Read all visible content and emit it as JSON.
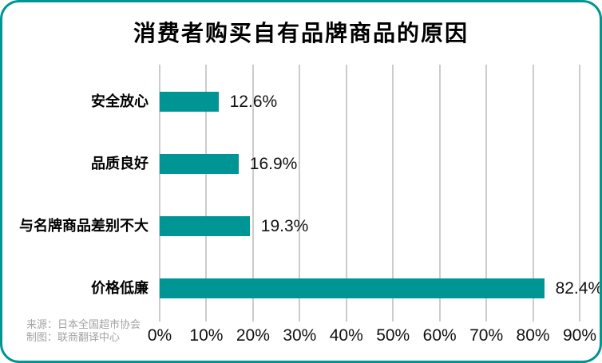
{
  "chart_data": {
    "type": "bar",
    "orientation": "horizontal",
    "title": "消费者购买自有品牌商品的原因",
    "categories": [
      "安全放心",
      "品质良好",
      "与名牌商品差别不大",
      "价格低廉"
    ],
    "values": [
      12.6,
      16.9,
      19.3,
      82.4
    ],
    "value_labels": [
      "12.6%",
      "16.9%",
      "19.3%",
      "82.4%"
    ],
    "xlabel": "",
    "ylabel": "",
    "xlim": [
      0,
      90
    ],
    "x_tick_values": [
      0,
      10,
      20,
      30,
      40,
      50,
      60,
      70,
      80,
      90
    ],
    "x_ticks": [
      "0%",
      "10%",
      "20%",
      "30%",
      "40%",
      "50%",
      "60%",
      "70%",
      "80%",
      "90%"
    ],
    "grid": "vertical",
    "legend": "none",
    "bar_color": "#009595"
  },
  "footer": {
    "source": "来源：日本全国超市协会",
    "credit": "制图：联商翻译中心"
  },
  "theme": {
    "accent": "#009595",
    "grid_color": "#cccccc",
    "muted_text": "#a3a3a3"
  }
}
